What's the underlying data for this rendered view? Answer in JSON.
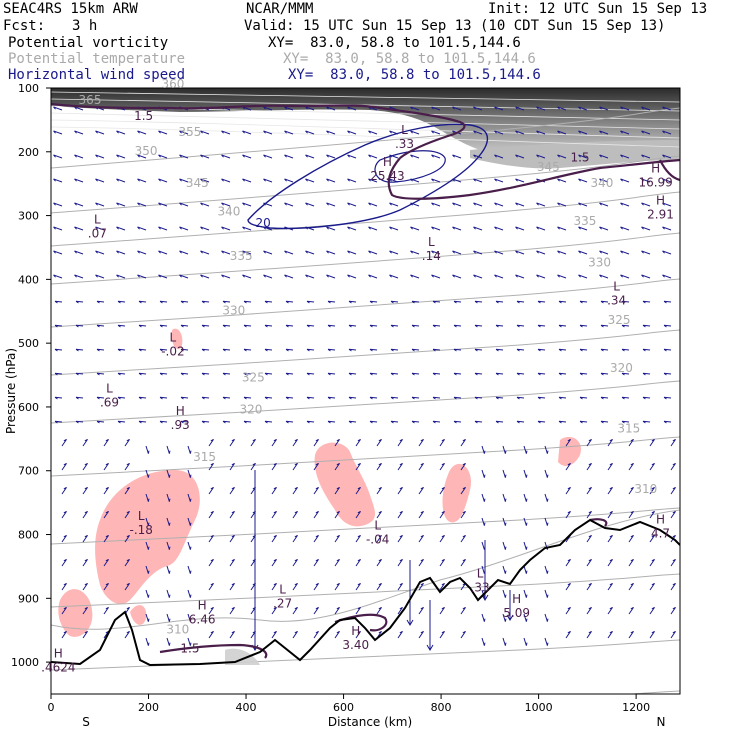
{
  "header": {
    "model": "SEAC4RS 15km ARW",
    "center": "NCAR/MMM",
    "init": "Init: 12 UTC Sun 15 Sep 13",
    "fcst_label": "Fcst:",
    "fcst_value": "3 h",
    "valid": "Valid: 15 UTC Sun 15 Sep 13 (10 CDT Sun 15 Sep 13)",
    "fields": [
      {
        "name": "Potential vorticity",
        "xy": "XY=  83.0, 58.8 to 101.5,144.6"
      },
      {
        "name": "Potential temperature",
        "xy": "XY=  83.0, 58.8 to 101.5,144.6"
      },
      {
        "name": "Horizontal wind speed",
        "xy": "XY=  83.0, 58.8 to 101.5,144.6"
      }
    ]
  },
  "colors": {
    "pv": "#4a1e4a",
    "theta": "#aaaaaa",
    "wind": "#1a1a8c",
    "shade_pink": "#ffb6b6",
    "terrain": "#000000"
  },
  "chart_data": {
    "type": "cross-section",
    "xlabel": "Distance (km)",
    "ylabel": "Pressure (hPa)",
    "xlim": [
      0,
      1290
    ],
    "ylim": [
      1050,
      100
    ],
    "x_ticks": [
      "0",
      "200",
      "400",
      "600",
      "800",
      "1000",
      "1200"
    ],
    "x_tick_values": [
      0,
      200,
      400,
      600,
      800,
      1000,
      1200
    ],
    "y_ticks": [
      "100",
      "200",
      "300",
      "400",
      "500",
      "600",
      "700",
      "800",
      "900",
      "1000"
    ],
    "y_tick_values": [
      100,
      200,
      300,
      400,
      500,
      600,
      700,
      800,
      900,
      1000
    ],
    "endpoints": {
      "left": "S",
      "right": "N"
    },
    "theta_isentropes": [
      {
        "label": "365",
        "x": 80,
        "p": 125
      },
      {
        "label": "360",
        "x": 250,
        "p": 100
      },
      {
        "label": "355",
        "x": 285,
        "p": 175
      },
      {
        "label": "350",
        "x": 195,
        "p": 205
      },
      {
        "label": "345",
        "x": 300,
        "p": 255
      },
      {
        "label": "340",
        "x": 365,
        "p": 300
      },
      {
        "label": "345",
        "x": 1020,
        "p": 230
      },
      {
        "label": "340",
        "x": 1130,
        "p": 255
      },
      {
        "label": "335",
        "x": 390,
        "p": 370
      },
      {
        "label": "335",
        "x": 1095,
        "p": 315
      },
      {
        "label": "330",
        "x": 375,
        "p": 455
      },
      {
        "label": "330",
        "x": 1125,
        "p": 380
      },
      {
        "label": "325",
        "x": 415,
        "p": 560
      },
      {
        "label": "325",
        "x": 1165,
        "p": 470
      },
      {
        "label": "320",
        "x": 410,
        "p": 610
      },
      {
        "label": "320",
        "x": 1170,
        "p": 545
      },
      {
        "label": "315",
        "x": 315,
        "p": 685
      },
      {
        "label": "315",
        "x": 1185,
        "p": 640
      },
      {
        "label": "310",
        "x": 260,
        "p": 955
      },
      {
        "label": "310",
        "x": 1220,
        "p": 735
      }
    ],
    "pv_labels": [
      {
        "label": "1.5",
        "x": 190,
        "p": 150
      },
      {
        "label": "1.5",
        "x": 1085,
        "p": 215
      },
      {
        "label": "1.5",
        "x": 285,
        "p": 985
      }
    ],
    "wind_speed_labels": [
      {
        "label": "20",
        "x": 435,
        "p": 318
      }
    ],
    "extrema": [
      {
        "kind": "L",
        "value": ".07",
        "x": 95,
        "p": 325
      },
      {
        "kind": "L",
        "value": ".33",
        "x": 725,
        "p": 185
      },
      {
        "kind": "H",
        "value": "25.43",
        "x": 690,
        "p": 235
      },
      {
        "kind": "L",
        "value": ".14",
        "x": 780,
        "p": 360
      },
      {
        "kind": "H",
        "value": "16.99",
        "x": 1240,
        "p": 245
      },
      {
        "kind": "H",
        "value": "2.91",
        "x": 1250,
        "p": 295
      },
      {
        "kind": "L",
        "value": ".34",
        "x": 1160,
        "p": 430
      },
      {
        "kind": "L",
        "value": "-.02",
        "x": 250,
        "p": 510
      },
      {
        "kind": "L",
        "value": ".69",
        "x": 120,
        "p": 590
      },
      {
        "kind": "H",
        "value": ".93",
        "x": 265,
        "p": 625
      },
      {
        "kind": "L",
        "value": "-.18",
        "x": 185,
        "p": 790
      },
      {
        "kind": "L",
        "value": "-.04",
        "x": 670,
        "p": 805
      },
      {
        "kind": "H",
        "value": "4.7",
        "x": 1250,
        "p": 795
      },
      {
        "kind": "L",
        "value": ".33",
        "x": 880,
        "p": 880
      },
      {
        "kind": "H",
        "value": "5.09",
        "x": 955,
        "p": 920
      },
      {
        "kind": "L",
        "value": ".27",
        "x": 475,
        "p": 905
      },
      {
        "kind": "H",
        "value": "6.46",
        "x": 310,
        "p": 930
      },
      {
        "kind": "H",
        "value": "3.40",
        "x": 625,
        "p": 970
      },
      {
        "kind": "H",
        "value": ".4624",
        "x": 15,
        "p": 1005
      }
    ]
  }
}
